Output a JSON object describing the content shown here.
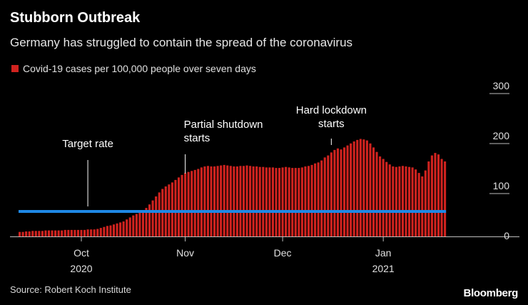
{
  "title": "Stubborn Outbreak",
  "subtitle": "Germany has struggled to contain the spread of the coronavirus",
  "legend_label": "Covid-19 cases per 100,000 people over seven days",
  "source": "Source: Robert Koch Institute",
  "brand": "Bloomberg",
  "colors": {
    "bar": "#d0231f",
    "target": "#1e88e5",
    "background": "#000000",
    "text": "#ffffff",
    "axis": "#bdbdbd"
  },
  "chart_data": {
    "type": "bar",
    "title": "Stubborn Outbreak",
    "ylabel": "Covid-19 cases per 100,000 people over seven days",
    "ylim": [
      0,
      300
    ],
    "yticks": [
      0,
      100,
      200,
      300
    ],
    "x_tick_labels": [
      {
        "label": "Oct",
        "sublabel": "2020",
        "bar_index": 19
      },
      {
        "label": "Nov",
        "sublabel": "",
        "bar_index": 51
      },
      {
        "label": "Dec",
        "sublabel": "",
        "bar_index": 81
      },
      {
        "label": "Jan",
        "sublabel": "2021",
        "bar_index": 112
      }
    ],
    "target_rate": 50,
    "values": [
      9,
      9,
      10,
      10,
      11,
      11,
      11,
      11,
      12,
      12,
      12,
      12,
      12,
      12,
      13,
      13,
      13,
      13,
      13,
      13,
      13,
      14,
      14,
      14,
      15,
      17,
      19,
      21,
      22,
      24,
      26,
      28,
      30,
      34,
      38,
      42,
      45,
      48,
      52,
      57,
      64,
      72,
      80,
      88,
      95,
      100,
      104,
      108,
      113,
      118,
      123,
      127,
      129,
      131,
      133,
      135,
      138,
      140,
      141,
      140,
      140,
      141,
      142,
      143,
      142,
      141,
      140,
      140,
      141,
      141,
      142,
      141,
      140,
      140,
      139,
      139,
      138,
      138,
      138,
      137,
      137,
      138,
      139,
      138,
      137,
      137,
      137,
      138,
      140,
      141,
      143,
      146,
      148,
      152,
      158,
      162,
      168,
      173,
      176,
      174,
      178,
      182,
      186,
      190,
      193,
      195,
      194,
      192,
      186,
      178,
      169,
      160,
      155,
      149,
      144,
      140,
      139,
      140,
      141,
      140,
      139,
      138,
      134,
      127,
      120,
      132,
      150,
      162,
      167,
      164,
      155,
      150
    ],
    "annotations": [
      {
        "text": "Target rate",
        "lines": [
          "Target rate"
        ],
        "bar_index": 21
      },
      {
        "text": "Partial shutdown starts",
        "lines": [
          "Partial shutdown",
          "starts"
        ],
        "bar_index": 51
      },
      {
        "text": "Hard lockdown starts",
        "lines": [
          "Hard lockdown",
          "starts"
        ],
        "bar_index": 96
      }
    ]
  }
}
